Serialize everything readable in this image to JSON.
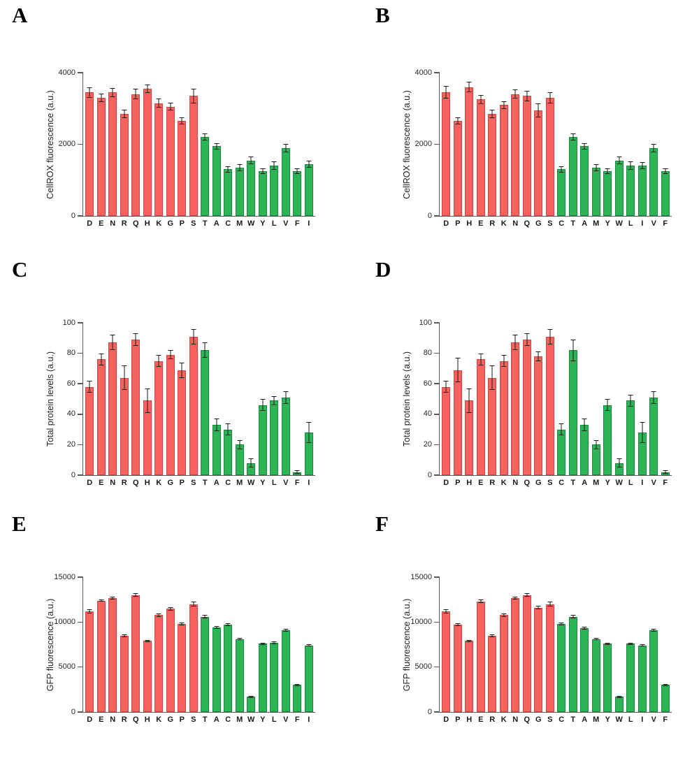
{
  "panels": [
    {
      "letter": "A"
    },
    {
      "letter": "B"
    },
    {
      "letter": "C"
    },
    {
      "letter": "D"
    },
    {
      "letter": "E"
    },
    {
      "letter": "F"
    }
  ],
  "colors": {
    "bar_red": "#f8625e",
    "bar_red_border": "#d6453f",
    "bar_green": "#2db457",
    "bar_green_border": "#188a3c",
    "error_bar": "#1a1a1a",
    "axis": "#595959",
    "background": "#ffffff"
  },
  "chart_data": [
    {
      "type": "bar",
      "panel": "A",
      "title": "",
      "ylabel": "CellROX fluorescence (a.u.)",
      "xlabel": "",
      "ylim": [
        0,
        4000
      ],
      "yticks": [
        0,
        2000,
        4000
      ],
      "grid": false,
      "legend": false,
      "categories": [
        "D",
        "E",
        "N",
        "R",
        "Q",
        "H",
        "K",
        "G",
        "P",
        "S",
        "T",
        "A",
        "C",
        "M",
        "W",
        "Y",
        "L",
        "V",
        "F",
        "I"
      ],
      "values": [
        3450,
        3300,
        3450,
        2850,
        3400,
        3550,
        3150,
        3050,
        2650,
        3350,
        2200,
        1950,
        1300,
        1350,
        1550,
        1250,
        1400,
        1900,
        1250,
        1450
      ],
      "errors": [
        150,
        120,
        130,
        110,
        150,
        120,
        120,
        110,
        100,
        200,
        100,
        90,
        80,
        100,
        100,
        80,
        120,
        120,
        80,
        100
      ],
      "red_count": 10
    },
    {
      "type": "bar",
      "panel": "B",
      "title": "",
      "ylabel": "CellROX fluorescence (a.u.)",
      "xlabel": "",
      "ylim": [
        0,
        4000
      ],
      "yticks": [
        0,
        2000,
        4000
      ],
      "grid": false,
      "legend": false,
      "categories": [
        "D",
        "P",
        "H",
        "E",
        "R",
        "K",
        "N",
        "Q",
        "G",
        "S",
        "C",
        "T",
        "A",
        "M",
        "Y",
        "W",
        "L",
        "I",
        "V",
        "F"
      ],
      "values": [
        3450,
        2650,
        3600,
        3250,
        2850,
        3100,
        3400,
        3350,
        2950,
        3300,
        1300,
        2200,
        1950,
        1350,
        1250,
        1550,
        1400,
        1400,
        1900,
        1250
      ],
      "errors": [
        180,
        100,
        150,
        120,
        110,
        110,
        130,
        150,
        200,
        160,
        80,
        100,
        90,
        100,
        80,
        100,
        120,
        100,
        120,
        80
      ],
      "red_count": 10
    },
    {
      "type": "bar",
      "panel": "C",
      "title": "",
      "ylabel": "Total protein levels (a.u.)",
      "xlabel": "",
      "ylim": [
        0,
        100
      ],
      "yticks": [
        0,
        20,
        40,
        60,
        80,
        100
      ],
      "grid": false,
      "legend": false,
      "categories": [
        "D",
        "E",
        "N",
        "R",
        "Q",
        "H",
        "K",
        "G",
        "P",
        "S",
        "T",
        "A",
        "C",
        "M",
        "W",
        "Y",
        "L",
        "V",
        "F",
        "I"
      ],
      "values": [
        58,
        76,
        87,
        64,
        89,
        49,
        75,
        79,
        69,
        91,
        82,
        33,
        30,
        20,
        8,
        46,
        49,
        51,
        2,
        28
      ],
      "errors": [
        4,
        4,
        5,
        8,
        4,
        8,
        4,
        3,
        5,
        5,
        5,
        4,
        4,
        3,
        3,
        4,
        3,
        4,
        1,
        7
      ],
      "red_count": 10
    },
    {
      "type": "bar",
      "panel": "D",
      "title": "",
      "ylabel": "Total protein levels (a.u.)",
      "xlabel": "",
      "ylim": [
        0,
        100
      ],
      "yticks": [
        0,
        20,
        40,
        60,
        80,
        100
      ],
      "grid": false,
      "legend": false,
      "categories": [
        "D",
        "P",
        "H",
        "E",
        "R",
        "K",
        "N",
        "Q",
        "G",
        "S",
        "C",
        "T",
        "A",
        "M",
        "Y",
        "W",
        "L",
        "I",
        "V",
        "F"
      ],
      "values": [
        58,
        69,
        49,
        76,
        64,
        75,
        87,
        89,
        78,
        91,
        30,
        82,
        33,
        20,
        46,
        8,
        49,
        28,
        51,
        2
      ],
      "errors": [
        4,
        8,
        8,
        4,
        8,
        4,
        5,
        4,
        3,
        5,
        4,
        7,
        4,
        3,
        4,
        3,
        4,
        7,
        4,
        1
      ],
      "red_count": 10
    },
    {
      "type": "bar",
      "panel": "E",
      "title": "",
      "ylabel": "GFP fluorescence (a.u.)",
      "xlabel": "",
      "ylim": [
        0,
        15000
      ],
      "yticks": [
        0,
        5000,
        10000,
        15000
      ],
      "grid": false,
      "legend": false,
      "categories": [
        "D",
        "E",
        "N",
        "R",
        "Q",
        "H",
        "K",
        "G",
        "P",
        "S",
        "T",
        "A",
        "C",
        "M",
        "W",
        "Y",
        "L",
        "V",
        "F",
        "I"
      ],
      "values": [
        11200,
        12400,
        12700,
        8500,
        13000,
        7900,
        10800,
        11500,
        9800,
        12000,
        10600,
        9400,
        9700,
        8100,
        1700,
        7600,
        7700,
        9100,
        3000,
        7400
      ],
      "errors": [
        250,
        150,
        150,
        150,
        200,
        120,
        200,
        200,
        150,
        250,
        200,
        150,
        150,
        120,
        120,
        120,
        120,
        150,
        120,
        120
      ],
      "red_count": 10
    },
    {
      "type": "bar",
      "panel": "F",
      "title": "",
      "ylabel": "GFP fluorescence (a.u.)",
      "xlabel": "",
      "ylim": [
        0,
        15000
      ],
      "yticks": [
        0,
        5000,
        10000,
        15000
      ],
      "grid": false,
      "legend": false,
      "categories": [
        "D",
        "P",
        "H",
        "E",
        "R",
        "K",
        "N",
        "Q",
        "G",
        "S",
        "C",
        "T",
        "A",
        "M",
        "Y",
        "W",
        "L",
        "I",
        "V",
        "F"
      ],
      "values": [
        11200,
        9700,
        7900,
        12300,
        8500,
        10800,
        12700,
        13000,
        11600,
        12000,
        9800,
        10600,
        9300,
        8100,
        7600,
        1700,
        7600,
        7400,
        9100,
        3000
      ],
      "errors": [
        250,
        150,
        120,
        200,
        150,
        200,
        150,
        200,
        200,
        250,
        150,
        200,
        150,
        120,
        120,
        120,
        120,
        120,
        150,
        120
      ],
      "red_count": 10
    }
  ]
}
